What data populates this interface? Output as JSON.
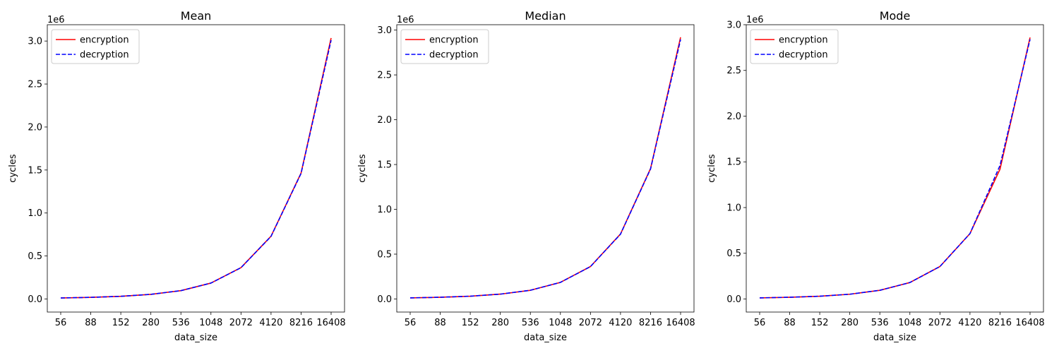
{
  "chart_data": [
    {
      "type": "line",
      "title": "Mean",
      "xlabel": "data_size",
      "ylabel": "cycles",
      "y_offset_label": "1e6",
      "categories": [
        "56",
        "88",
        "152",
        "280",
        "536",
        "1048",
        "2072",
        "4120",
        "8216",
        "16408"
      ],
      "yticks": [
        "0.0",
        "0.5",
        "1.0",
        "1.5",
        "2.0",
        "2.5",
        "3.0"
      ],
      "ytick_values": [
        0,
        0.5,
        1.0,
        1.5,
        2.0,
        2.5,
        3.0
      ],
      "ylim": [
        -0.152,
        3.19
      ],
      "legend_position": "upper-left",
      "series": [
        {
          "name": "encryption",
          "color": "#ff0000",
          "style": "solid",
          "values": [
            0.012,
            0.019,
            0.031,
            0.054,
            0.097,
            0.185,
            0.365,
            0.73,
            1.465,
            3.035
          ]
        },
        {
          "name": "decryption",
          "color": "#0000ff",
          "style": "dashed",
          "values": [
            0.012,
            0.019,
            0.031,
            0.054,
            0.097,
            0.185,
            0.364,
            0.728,
            1.46,
            3.01
          ]
        }
      ]
    },
    {
      "type": "line",
      "title": "Median",
      "xlabel": "data_size",
      "ylabel": "cycles",
      "y_offset_label": "1e6",
      "categories": [
        "56",
        "88",
        "152",
        "280",
        "536",
        "1048",
        "2072",
        "4120",
        "8216",
        "16408"
      ],
      "yticks": [
        "0.0",
        "0.5",
        "1.0",
        "1.5",
        "2.0",
        "2.5",
        "3.0"
      ],
      "ytick_values": [
        0,
        0.5,
        1.0,
        1.5,
        2.0,
        2.5,
        3.0
      ],
      "ylim": [
        -0.146,
        3.06
      ],
      "legend_position": "upper-left",
      "series": [
        {
          "name": "encryption",
          "color": "#ff0000",
          "style": "solid",
          "values": [
            0.012,
            0.019,
            0.031,
            0.054,
            0.097,
            0.185,
            0.362,
            0.725,
            1.455,
            2.92
          ]
        },
        {
          "name": "decryption",
          "color": "#0000ff",
          "style": "dashed",
          "values": [
            0.012,
            0.019,
            0.031,
            0.054,
            0.097,
            0.185,
            0.361,
            0.723,
            1.45,
            2.895
          ]
        }
      ]
    },
    {
      "type": "line",
      "title": "Mode",
      "xlabel": "data_size",
      "ylabel": "cycles",
      "y_offset_label": "1e6",
      "categories": [
        "56",
        "88",
        "152",
        "280",
        "536",
        "1048",
        "2072",
        "4120",
        "8216",
        "16408"
      ],
      "yticks": [
        "0.0",
        "0.5",
        "1.0",
        "1.5",
        "2.0",
        "2.5",
        "3.0"
      ],
      "ytick_values": [
        0,
        0.5,
        1.0,
        1.5,
        2.0,
        2.5,
        3.0
      ],
      "ylim": [
        -0.143,
        3.0
      ],
      "legend_position": "upper-left",
      "series": [
        {
          "name": "encryption",
          "color": "#ff0000",
          "style": "solid",
          "values": [
            0.012,
            0.019,
            0.03,
            0.052,
            0.095,
            0.18,
            0.355,
            0.715,
            1.42,
            2.86
          ]
        },
        {
          "name": "decryption",
          "color": "#0000ff",
          "style": "dashed",
          "values": [
            0.012,
            0.019,
            0.03,
            0.052,
            0.095,
            0.18,
            0.355,
            0.715,
            1.46,
            2.84
          ]
        }
      ]
    }
  ]
}
